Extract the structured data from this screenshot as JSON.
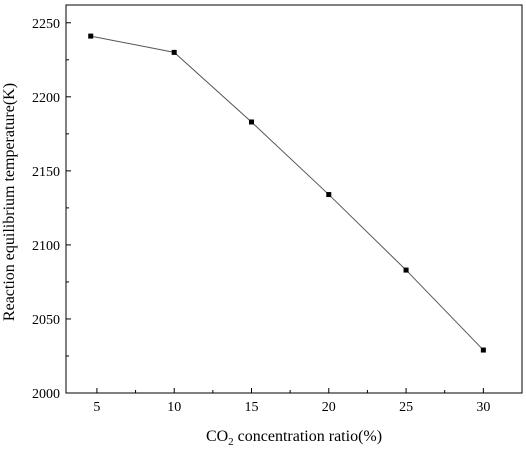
{
  "chart_data": {
    "type": "line",
    "title": "",
    "xlabel": {
      "prefix": "CO",
      "subscript": "2",
      "suffix": " concentration ratio(%)"
    },
    "ylabel": "Reaction equilibrium temperature(K)",
    "x_ticks": [
      "5",
      "10",
      "15",
      "20",
      "25",
      "30"
    ],
    "y_ticks": [
      "2000",
      "2050",
      "2100",
      "2150",
      "2200",
      "2250"
    ],
    "xlim": [
      3,
      32.5
    ],
    "ylim": [
      2000,
      2262
    ],
    "grid": false,
    "legend": "none",
    "series": [
      {
        "marker": "square",
        "color": "#000000",
        "x": [
          4.6,
          10,
          15,
          20,
          25,
          30
        ],
        "y": [
          2241,
          2230,
          2183,
          2134,
          2083,
          2029
        ]
      }
    ]
  }
}
